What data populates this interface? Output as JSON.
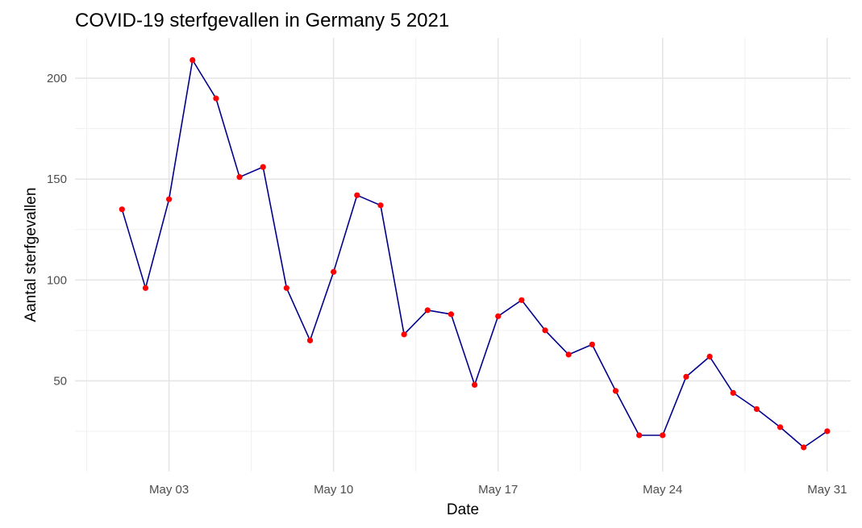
{
  "chart_data": {
    "type": "line",
    "title": "COVID-19 sterfgevallen in Germany 5 2021",
    "xlabel": "Date",
    "ylabel": "Aantal sterfgevallen",
    "x": [
      "2021-05-01",
      "2021-05-02",
      "2021-05-03",
      "2021-05-04",
      "2021-05-05",
      "2021-05-06",
      "2021-05-07",
      "2021-05-08",
      "2021-05-09",
      "2021-05-10",
      "2021-05-11",
      "2021-05-12",
      "2021-05-13",
      "2021-05-14",
      "2021-05-15",
      "2021-05-16",
      "2021-05-17",
      "2021-05-18",
      "2021-05-19",
      "2021-05-20",
      "2021-05-21",
      "2021-05-22",
      "2021-05-23",
      "2021-05-24",
      "2021-05-25",
      "2021-05-26",
      "2021-05-27",
      "2021-05-28",
      "2021-05-29",
      "2021-05-30",
      "2021-05-31"
    ],
    "y": [
      135,
      96,
      140,
      209,
      190,
      151,
      156,
      96,
      70,
      104,
      142,
      137,
      73,
      85,
      83,
      48,
      82,
      90,
      75,
      63,
      68,
      45,
      23,
      23,
      52,
      62,
      44,
      36,
      27,
      17,
      25
    ],
    "x_ticks": [
      "May 03",
      "May 10",
      "May 17",
      "May 24",
      "May 31"
    ],
    "y_ticks": [
      50,
      100,
      150,
      200
    ],
    "xlim": [
      "2021-04-29",
      "2021-06-01"
    ],
    "ylim": [
      5,
      220
    ],
    "grid": true,
    "line_color": "#00008b",
    "point_color": "#ff0000"
  }
}
